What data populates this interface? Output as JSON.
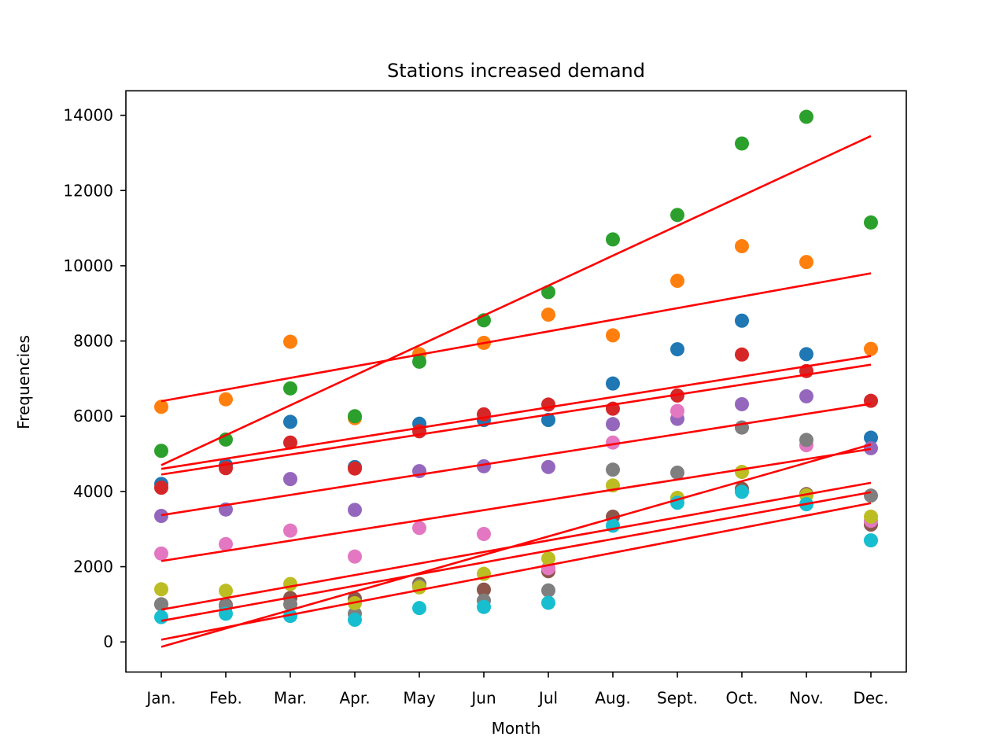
{
  "chart_data": {
    "type": "scatter",
    "title": "Stations increased demand",
    "xlabel": "Month",
    "ylabel": "Frequencies",
    "categories": [
      "Jan.",
      "Feb.",
      "Mar.",
      "Apr.",
      "May",
      "Jun",
      "Jul",
      "Aug.",
      "Sept.",
      "Oct.",
      "Nov.",
      "Dec."
    ],
    "ylim": [
      -800,
      14650
    ],
    "yticks": [
      0,
      2000,
      4000,
      6000,
      8000,
      10000,
      12000,
      14000
    ],
    "grid": false,
    "legend": "none",
    "fit_line_color": "#ff0000",
    "series": [
      {
        "color": "#1f77b4",
        "values": [
          4200,
          4700,
          5850,
          4650,
          5800,
          5900,
          5900,
          6870,
          7780,
          8540,
          7650,
          5430
        ]
      },
      {
        "color": "#ff7f0e",
        "values": [
          6250,
          6450,
          7980,
          5950,
          7650,
          7950,
          8700,
          8150,
          9600,
          10520,
          10100,
          7790
        ]
      },
      {
        "color": "#2ca02c",
        "values": [
          5080,
          5380,
          6740,
          6000,
          7450,
          8550,
          9300,
          10700,
          11350,
          13250,
          13960,
          11150
        ]
      },
      {
        "color": "#d62728",
        "values": [
          4100,
          4620,
          5300,
          4610,
          5600,
          6050,
          6310,
          6200,
          6550,
          7640,
          7200,
          6410
        ]
      },
      {
        "color": "#9467bd",
        "values": [
          3350,
          3520,
          4330,
          3510,
          4540,
          4670,
          4650,
          5790,
          5930,
          6320,
          6530,
          5150
        ]
      },
      {
        "color": "#8c564b",
        "values": [
          1000,
          980,
          1170,
          1150,
          1540,
          1390,
          1880,
          3330,
          3820,
          4070,
          3930,
          3120
        ]
      },
      {
        "color": "#e377c2",
        "values": [
          2350,
          2600,
          2960,
          2270,
          3030,
          2870,
          1960,
          5300,
          6140,
          5700,
          5230,
          3220
        ]
      },
      {
        "color": "#7f7f7f",
        "values": [
          1000,
          950,
          1000,
          750,
          1490,
          1100,
          1370,
          4580,
          4500,
          5700,
          5370,
          3890
        ]
      },
      {
        "color": "#bcbd22",
        "values": [
          1400,
          1360,
          1540,
          1030,
          1450,
          1810,
          2220,
          4160,
          3830,
          4520,
          3900,
          3330
        ]
      },
      {
        "color": "#17becf",
        "values": [
          660,
          750,
          690,
          590,
          900,
          930,
          1040,
          3090,
          3700,
          3990,
          3660,
          2700
        ]
      }
    ],
    "fit_lines": [
      {
        "start": 4700,
        "end": 13450
      },
      {
        "start": 6400,
        "end": 9800
      },
      {
        "start": 4600,
        "end": 7600
      },
      {
        "start": 4450,
        "end": 7370
      },
      {
        "start": 3370,
        "end": 6330
      },
      {
        "start": 2150,
        "end": 5130
      },
      {
        "start": 860,
        "end": 4230
      },
      {
        "start": 560,
        "end": 3980
      },
      {
        "start": 60,
        "end": 3690
      },
      {
        "start": -130,
        "end": 5250
      }
    ]
  }
}
